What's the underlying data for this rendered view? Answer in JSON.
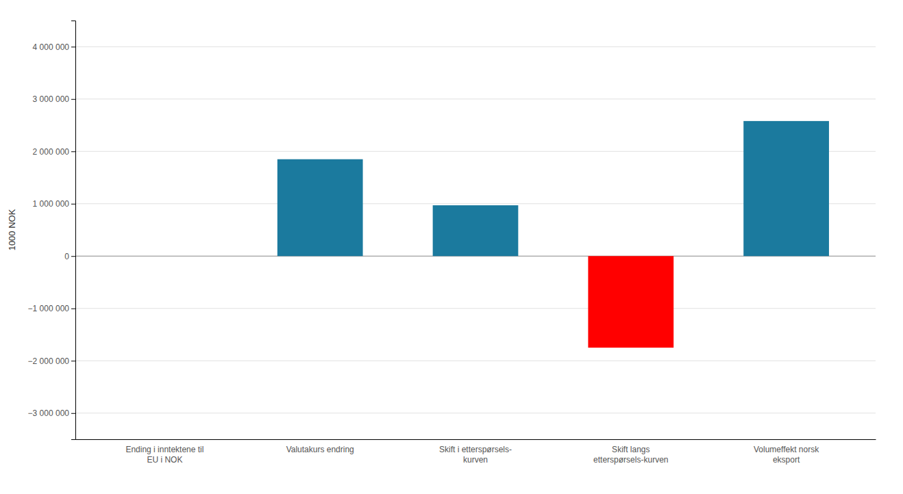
{
  "chart_data": {
    "type": "bar",
    "categories": [
      "Ending i inntektene til\nEU i NOK",
      "Valutakurs endring",
      "Skift i etterspørsels-\nkurven",
      "Skift langs\netterspørsels-kurven",
      "Volumeffekt norsk\neksport"
    ],
    "values": [
      0,
      1850000,
      970000,
      -1750000,
      2580000
    ],
    "colors": [
      "#1b7a9e",
      "#1b7a9e",
      "#1b7a9e",
      "#ff0000",
      "#1b7a9e"
    ],
    "ylabel": "1000 NOK",
    "ylim": [
      -3500000,
      4500000
    ],
    "yticks": [
      {
        "value": -3000000,
        "label": "−3 000 000"
      },
      {
        "value": -2000000,
        "label": "−2 000 000"
      },
      {
        "value": -1000000,
        "label": "−1 000 000"
      },
      0,
      {
        "value": 1000000,
        "label": "1 000 000"
      },
      {
        "value": 2000000,
        "label": "2 000 000"
      },
      {
        "value": 3000000,
        "label": "3 000 000"
      },
      {
        "value": 4000000,
        "label": "4 000 000"
      }
    ],
    "grid": true
  }
}
